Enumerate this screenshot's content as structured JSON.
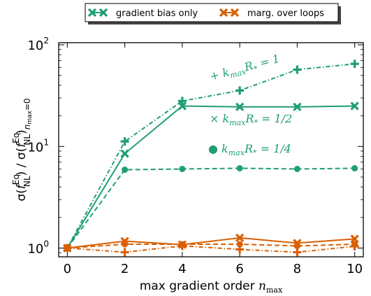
{
  "chart_data": {
    "type": "line",
    "xlabel": "max gradient order",
    "xlabel_symbol": "n",
    "xlabel_symbol_sub": "max",
    "ylabel_parts": {
      "sigma": "σ(",
      "f": "f",
      "sup": "Eq",
      "sub": "NL",
      "close": ") / σ(",
      "f2": "f",
      "sup2": "Eq",
      "sub2": "NL",
      "close2": ")",
      "sub3": "n",
      "sub3b": "max",
      "sub3c": "=0"
    },
    "x_ticks": [
      "0",
      "2",
      "4",
      "6",
      "8",
      "10"
    ],
    "y_ticks": [
      {
        "base": "10",
        "exp": "0"
      },
      {
        "base": "10",
        "exp": "1"
      },
      {
        "base": "10",
        "exp": "2"
      }
    ],
    "xlim": [
      -0.3,
      10.3
    ],
    "ylim": [
      0.82,
      105
    ],
    "yscale": "log",
    "colors": {
      "green": "#1f9e74",
      "orange": "#d95f02"
    },
    "legend": {
      "placement": "top-center",
      "entries": [
        {
          "label": "gradient bias only",
          "color": "#1f9e74"
        },
        {
          "label": "marg. over loops",
          "color": "#d95f02"
        }
      ]
    },
    "annotations": [
      {
        "marker": "+",
        "text": "k",
        "sub": "max",
        "tail": "R",
        "tail_sub": "*",
        "value": " = 1"
      },
      {
        "marker": "×",
        "text": "k",
        "sub": "max",
        "tail": "R",
        "tail_sub": "*",
        "value": " = 1/2"
      },
      {
        "marker": "●",
        "text": "k",
        "sub": "max",
        "tail": "R",
        "tail_sub": "*",
        "value": " = 1/4"
      }
    ],
    "series": [
      {
        "group": "gradient bias only",
        "kR": "1",
        "color": "#1f9e74",
        "linestyle": "dashdot",
        "marker": "plus",
        "x": [
          0,
          2,
          4,
          6,
          8,
          10
        ],
        "y": [
          1.0,
          11.2,
          28.0,
          35.5,
          57.0,
          65.0
        ]
      },
      {
        "group": "gradient bias only",
        "kR": "1/2",
        "color": "#1f9e74",
        "linestyle": "solid",
        "marker": "x",
        "x": [
          0,
          2,
          4,
          6,
          8,
          10
        ],
        "y": [
          1.0,
          8.5,
          25.0,
          24.5,
          24.5,
          25.0
        ]
      },
      {
        "group": "gradient bias only",
        "kR": "1/4",
        "color": "#1f9e74",
        "linestyle": "dashed",
        "marker": "circle",
        "x": [
          0,
          2,
          4,
          6,
          8,
          10
        ],
        "y": [
          1.0,
          5.9,
          6.0,
          6.1,
          6.0,
          6.1
        ]
      },
      {
        "group": "marg. over loops",
        "kR": "1",
        "color": "#d95f02",
        "linestyle": "dashdot",
        "marker": "plus",
        "x": [
          0,
          2,
          4,
          6,
          8,
          10
        ],
        "y": [
          1.0,
          0.91,
          1.05,
          0.97,
          0.91,
          1.04
        ]
      },
      {
        "group": "marg. over loops",
        "kR": "1/2",
        "color": "#d95f02",
        "linestyle": "solid",
        "marker": "x",
        "x": [
          0,
          2,
          4,
          6,
          8,
          10
        ],
        "y": [
          1.0,
          1.17,
          1.08,
          1.26,
          1.12,
          1.23
        ]
      },
      {
        "group": "marg. over loops",
        "kR": "1/4",
        "color": "#d95f02",
        "linestyle": "dashed",
        "marker": "circle",
        "x": [
          0,
          2,
          4,
          6,
          8,
          10
        ],
        "y": [
          1.0,
          1.09,
          1.09,
          1.09,
          1.05,
          1.09
        ]
      }
    ]
  }
}
